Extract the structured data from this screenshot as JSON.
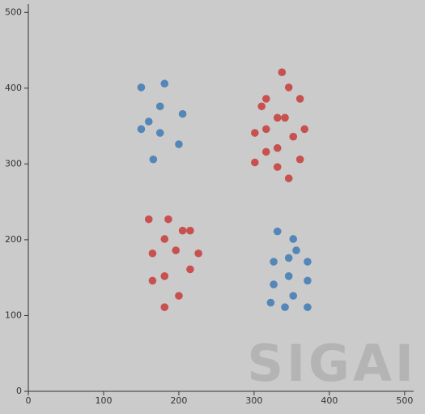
{
  "chart_data": {
    "type": "scatter",
    "watermark": "SIGAI",
    "xlim": [
      0,
      512
    ],
    "ylim": [
      0,
      511
    ],
    "xticks": [
      0,
      100,
      200,
      300,
      400,
      500
    ],
    "yticks": [
      0,
      100,
      200,
      300,
      400,
      500
    ],
    "series": [
      {
        "color": "#5586b8",
        "x": [
          150,
          181,
          175,
          205,
          160,
          150,
          175,
          200,
          166,
          331,
          352,
          356,
          346,
          326,
          371,
          346,
          326,
          371,
          352,
          322,
          341,
          371
        ],
        "values": [
          401,
          406,
          376,
          366,
          356,
          346,
          341,
          326,
          306,
          211,
          201,
          186,
          176,
          171,
          171,
          152,
          141,
          146,
          126,
          117,
          111,
          111
        ]
      },
      {
        "color": "#c8514f",
        "x": [
          337,
          346,
          316,
          361,
          310,
          331,
          341,
          301,
          316,
          367,
          352,
          331,
          316,
          361,
          301,
          331,
          346,
          160,
          186,
          205,
          215,
          181,
          165,
          196,
          226,
          215,
          165,
          181,
          200,
          181
        ],
        "values": [
          421,
          401,
          386,
          386,
          376,
          361,
          361,
          341,
          346,
          346,
          336,
          321,
          316,
          306,
          302,
          296,
          281,
          227,
          227,
          212,
          212,
          201,
          182,
          186,
          182,
          161,
          146,
          152,
          126,
          111
        ]
      }
    ]
  }
}
